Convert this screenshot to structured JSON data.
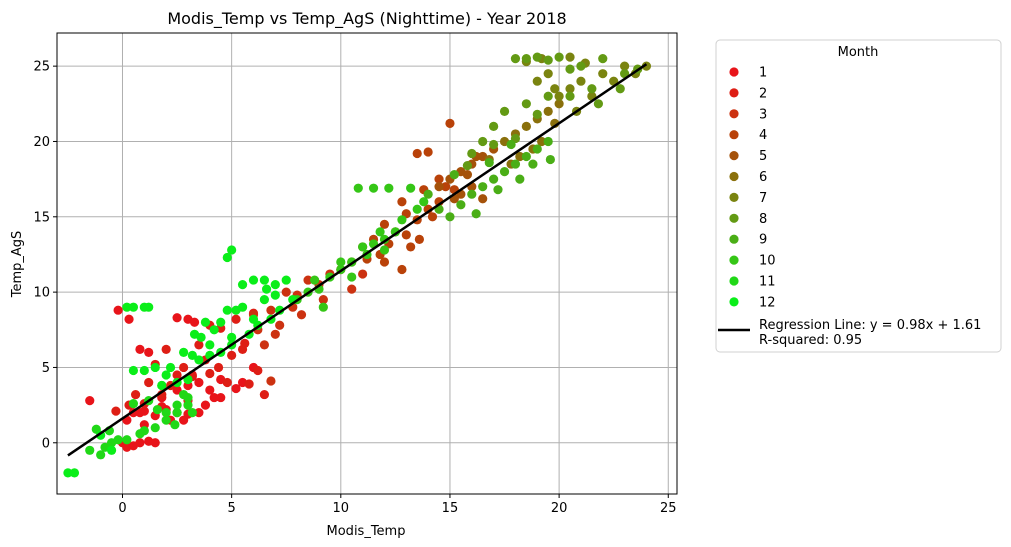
{
  "chart_data": {
    "type": "scatter",
    "title": "Modis_Temp vs Temp_AgS (Nighttime) - Year 2018",
    "xlabel": "Modis_Temp",
    "ylabel": "Temp_AgS",
    "xlim": [
      -3.0,
      25.4
    ],
    "ylim": [
      -3.4,
      27.2
    ],
    "xticks": [
      "0",
      "5",
      "10",
      "15",
      "20",
      "25"
    ],
    "yticks": [
      "0",
      "5",
      "10",
      "15",
      "20",
      "25"
    ],
    "grid": true,
    "legend": {
      "title": "Month",
      "placement": "outside-right",
      "regression_label": "Regression Line: y = 0.98x + 1.61",
      "r_squared_label": "R-squared: 0.95"
    },
    "regression": {
      "slope": 0.98,
      "intercept": 1.61,
      "x_range": [
        -2.5,
        24
      ],
      "color": "#000000"
    },
    "series": [
      {
        "name": "1",
        "color": "#e8141a",
        "points": [
          [
            -1.5,
            2.8
          ],
          [
            0.0,
            0.0
          ],
          [
            0.2,
            -0.3
          ],
          [
            0.5,
            -0.2
          ],
          [
            0.8,
            0.0
          ],
          [
            1.2,
            0.1
          ],
          [
            1.5,
            0.0
          ],
          [
            0.5,
            2.0
          ],
          [
            1.0,
            2.1
          ],
          [
            1.5,
            1.8
          ],
          [
            2.0,
            2.2
          ],
          [
            2.5,
            2.0
          ],
          [
            3.0,
            1.9
          ],
          [
            3.5,
            2.0
          ],
          [
            1.8,
            3.0
          ],
          [
            2.5,
            3.5
          ],
          [
            3.0,
            3.8
          ],
          [
            3.5,
            4.0
          ],
          [
            4.0,
            3.5
          ],
          [
            4.5,
            4.2
          ],
          [
            0.8,
            6.2
          ],
          [
            1.2,
            6.0
          ],
          [
            2.5,
            8.3
          ],
          [
            3.0,
            8.2
          ],
          [
            3.3,
            8.0
          ],
          [
            -0.2,
            8.8
          ],
          [
            0.3,
            8.2
          ],
          [
            4.5,
            3.0
          ],
          [
            5.2,
            3.6
          ],
          [
            6.0,
            5.0
          ],
          [
            2.2,
            1.5
          ],
          [
            1.0,
            1.2
          ],
          [
            3.8,
            2.5
          ],
          [
            0.2,
            1.5
          ],
          [
            4.2,
            3.0
          ],
          [
            2.8,
            1.5
          ],
          [
            1.8,
            2.4
          ],
          [
            0.8,
            2.0
          ],
          [
            3.2,
            4.5
          ],
          [
            5.5,
            4.0
          ]
        ]
      },
      {
        "name": "2",
        "color": "#de1e15",
        "points": [
          [
            -0.3,
            2.1
          ],
          [
            0.3,
            2.5
          ],
          [
            1.0,
            2.6
          ],
          [
            1.8,
            3.2
          ],
          [
            2.5,
            4.5
          ],
          [
            3.2,
            4.4
          ],
          [
            4.0,
            4.6
          ],
          [
            4.8,
            4.0
          ],
          [
            5.0,
            5.8
          ],
          [
            5.5,
            6.2
          ],
          [
            6.2,
            4.8
          ],
          [
            1.5,
            5.2
          ],
          [
            2.0,
            6.2
          ],
          [
            3.5,
            6.5
          ],
          [
            4.0,
            7.8
          ],
          [
            4.5,
            7.6
          ],
          [
            5.2,
            8.2
          ],
          [
            6.0,
            8.6
          ],
          [
            6.5,
            3.2
          ],
          [
            5.8,
            3.9
          ],
          [
            2.8,
            5.0
          ],
          [
            3.8,
            5.5
          ],
          [
            1.2,
            4.0
          ],
          [
            0.6,
            3.2
          ],
          [
            2.2,
            3.8
          ],
          [
            4.4,
            5.0
          ],
          [
            5.6,
            6.6
          ],
          [
            3.0,
            2.8
          ]
        ]
      },
      {
        "name": "3",
        "color": "#cc3211",
        "points": [
          [
            6.0,
            8.5
          ],
          [
            6.8,
            8.8
          ],
          [
            7.5,
            10.0
          ],
          [
            8.0,
            9.8
          ],
          [
            8.5,
            10.8
          ],
          [
            9.0,
            10.5
          ],
          [
            9.5,
            11.2
          ],
          [
            10.0,
            11.5
          ],
          [
            7.2,
            7.8
          ],
          [
            6.5,
            6.5
          ],
          [
            6.8,
            4.1
          ],
          [
            7.0,
            7.2
          ],
          [
            8.2,
            8.5
          ],
          [
            9.2,
            9.5
          ],
          [
            10.5,
            10.2
          ],
          [
            11.0,
            11.2
          ],
          [
            7.8,
            9.0
          ],
          [
            6.2,
            7.5
          ]
        ]
      },
      {
        "name": "4",
        "color": "#b94209",
        "points": [
          [
            10.5,
            12.0
          ],
          [
            11.0,
            13.0
          ],
          [
            11.5,
            13.5
          ],
          [
            12.0,
            14.5
          ],
          [
            12.5,
            14.0
          ],
          [
            13.0,
            13.8
          ],
          [
            13.5,
            14.8
          ],
          [
            14.0,
            15.5
          ],
          [
            14.5,
            16.0
          ],
          [
            13.5,
            19.2
          ],
          [
            14.0,
            19.3
          ],
          [
            14.5,
            17.5
          ],
          [
            15.0,
            21.2
          ],
          [
            13.8,
            16.8
          ],
          [
            12.8,
            11.5
          ],
          [
            13.2,
            13.0
          ],
          [
            12.2,
            13.2
          ],
          [
            11.8,
            12.5
          ],
          [
            14.2,
            15.0
          ],
          [
            15.2,
            16.8
          ],
          [
            12.8,
            16.0
          ],
          [
            13.0,
            15.2
          ],
          [
            12.0,
            12.0
          ],
          [
            14.8,
            17.0
          ],
          [
            11.2,
            12.2
          ],
          [
            13.6,
            13.5
          ]
        ]
      },
      {
        "name": "5",
        "color": "#a5520a",
        "points": [
          [
            14.5,
            17.0
          ],
          [
            15.0,
            17.5
          ],
          [
            15.5,
            18.0
          ],
          [
            16.0,
            18.5
          ],
          [
            16.5,
            19.0
          ],
          [
            17.0,
            19.5
          ],
          [
            15.5,
            16.5
          ],
          [
            16.0,
            17.0
          ],
          [
            15.2,
            16.2
          ],
          [
            15.8,
            17.8
          ],
          [
            16.5,
            16.2
          ],
          [
            16.2,
            19.0
          ]
        ]
      },
      {
        "name": "6",
        "color": "#8a700c",
        "points": [
          [
            17.5,
            20.0
          ],
          [
            18.0,
            20.5
          ],
          [
            18.5,
            21.0
          ],
          [
            19.0,
            21.5
          ],
          [
            19.5,
            22.0
          ],
          [
            20.0,
            22.5
          ],
          [
            18.2,
            19.0
          ],
          [
            17.8,
            18.5
          ],
          [
            19.2,
            20.0
          ],
          [
            19.8,
            21.2
          ],
          [
            16.8,
            18.8
          ],
          [
            18.8,
            19.5
          ]
        ]
      },
      {
        "name": "7",
        "color": "#7a8410",
        "points": [
          [
            19.0,
            24.0
          ],
          [
            19.5,
            24.5
          ],
          [
            20.0,
            23.0
          ],
          [
            20.5,
            23.5
          ],
          [
            21.0,
            24.0
          ],
          [
            21.5,
            23.0
          ],
          [
            22.0,
            24.5
          ],
          [
            22.5,
            24.0
          ],
          [
            23.0,
            25.0
          ],
          [
            23.5,
            24.5
          ],
          [
            24.0,
            25.0
          ],
          [
            18.5,
            25.3
          ],
          [
            19.2,
            25.5
          ],
          [
            20.5,
            25.6
          ],
          [
            21.2,
            25.2
          ],
          [
            20.8,
            22.0
          ],
          [
            19.8,
            23.5
          ]
        ]
      },
      {
        "name": "8",
        "color": "#639a14",
        "points": [
          [
            18.0,
            25.5
          ],
          [
            18.5,
            25.5
          ],
          [
            19.0,
            25.6
          ],
          [
            19.5,
            25.4
          ],
          [
            20.0,
            25.6
          ],
          [
            20.5,
            24.8
          ],
          [
            21.0,
            25.0
          ],
          [
            22.0,
            25.5
          ],
          [
            23.0,
            24.5
          ],
          [
            17.5,
            22.0
          ],
          [
            18.5,
            22.5
          ],
          [
            19.5,
            23.0
          ],
          [
            20.5,
            23.0
          ],
          [
            21.5,
            23.5
          ],
          [
            17.0,
            21.0
          ],
          [
            16.5,
            20.0
          ],
          [
            17.0,
            19.8
          ],
          [
            18.0,
            20.2
          ],
          [
            21.8,
            22.5
          ],
          [
            22.8,
            23.5
          ],
          [
            16.0,
            19.2
          ],
          [
            15.8,
            18.4
          ],
          [
            23.6,
            24.8
          ],
          [
            19.0,
            21.8
          ]
        ]
      },
      {
        "name": "9",
        "color": "#4aae16",
        "points": [
          [
            14.0,
            16.5
          ],
          [
            14.5,
            15.5
          ],
          [
            15.0,
            15.0
          ],
          [
            15.5,
            15.8
          ],
          [
            16.0,
            16.5
          ],
          [
            16.5,
            17.0
          ],
          [
            17.0,
            17.5
          ],
          [
            17.5,
            18.0
          ],
          [
            18.0,
            18.5
          ],
          [
            18.5,
            19.0
          ],
          [
            19.0,
            19.5
          ],
          [
            19.5,
            20.0
          ],
          [
            17.2,
            16.8
          ],
          [
            18.2,
            17.5
          ],
          [
            16.2,
            15.2
          ],
          [
            15.2,
            17.8
          ],
          [
            17.8,
            19.8
          ],
          [
            18.8,
            18.5
          ],
          [
            19.6,
            18.8
          ],
          [
            16.8,
            18.6
          ]
        ]
      },
      {
        "name": "10",
        "color": "#35c616",
        "points": [
          [
            8.0,
            9.5
          ],
          [
            8.5,
            10.0
          ],
          [
            9.0,
            10.2
          ],
          [
            9.5,
            11.0
          ],
          [
            10.0,
            11.5
          ],
          [
            10.5,
            12.0
          ],
          [
            11.0,
            13.0
          ],
          [
            11.5,
            13.2
          ],
          [
            12.0,
            13.5
          ],
          [
            12.5,
            14.0
          ],
          [
            10.8,
            16.9
          ],
          [
            11.5,
            16.9
          ],
          [
            12.2,
            16.9
          ],
          [
            13.2,
            16.9
          ],
          [
            10.0,
            12.0
          ],
          [
            11.2,
            12.5
          ],
          [
            12.8,
            14.8
          ],
          [
            13.5,
            15.5
          ],
          [
            9.2,
            9.0
          ],
          [
            10.5,
            11.0
          ],
          [
            12.0,
            12.8
          ],
          [
            8.8,
            10.8
          ],
          [
            13.8,
            16.0
          ],
          [
            11.8,
            14.0
          ]
        ]
      },
      {
        "name": "11",
        "color": "#20d817",
        "points": [
          [
            -1.5,
            -0.5
          ],
          [
            -1.0,
            -0.8
          ],
          [
            -0.8,
            -0.3
          ],
          [
            -0.5,
            0.0
          ],
          [
            -0.2,
            0.2
          ],
          [
            0.2,
            0.2
          ],
          [
            1.0,
            0.8
          ],
          [
            1.5,
            1.0
          ],
          [
            2.0,
            1.5
          ],
          [
            2.5,
            2.0
          ],
          [
            3.0,
            2.5
          ],
          [
            2.0,
            2.0
          ],
          [
            2.5,
            2.5
          ],
          [
            3.0,
            3.0
          ],
          [
            1.2,
            2.8
          ],
          [
            1.8,
            3.8
          ],
          [
            0.5,
            2.6
          ],
          [
            -1.2,
            0.9
          ],
          [
            -0.6,
            0.8
          ],
          [
            0.8,
            0.6
          ],
          [
            2.4,
            1.2
          ],
          [
            3.2,
            2.0
          ],
          [
            1.6,
            2.2
          ],
          [
            2.8,
            3.2
          ]
        ]
      },
      {
        "name": "12",
        "color": "#0aee19",
        "points": [
          [
            -2.5,
            -2.0
          ],
          [
            -2.2,
            -2.0
          ],
          [
            0.2,
            9.0
          ],
          [
            0.5,
            9.0
          ],
          [
            1.0,
            9.0
          ],
          [
            1.2,
            9.0
          ],
          [
            0.5,
            4.8
          ],
          [
            1.0,
            4.8
          ],
          [
            1.5,
            5.0
          ],
          [
            3.5,
            5.5
          ],
          [
            4.0,
            6.5
          ],
          [
            4.5,
            6.0
          ],
          [
            5.0,
            6.5
          ],
          [
            4.5,
            8.0
          ],
          [
            3.8,
            8.0
          ],
          [
            3.3,
            7.2
          ],
          [
            4.8,
            12.3
          ],
          [
            5.0,
            12.8
          ],
          [
            5.5,
            10.5
          ],
          [
            6.0,
            10.8
          ],
          [
            6.5,
            10.8
          ],
          [
            7.0,
            10.5
          ],
          [
            7.5,
            10.8
          ],
          [
            5.8,
            7.2
          ],
          [
            6.2,
            7.8
          ],
          [
            6.8,
            8.2
          ],
          [
            7.2,
            8.8
          ],
          [
            7.8,
            9.5
          ],
          [
            5.2,
            8.8
          ],
          [
            4.8,
            8.8
          ],
          [
            2.8,
            6.0
          ],
          [
            3.2,
            5.8
          ],
          [
            2.0,
            4.5
          ],
          [
            2.5,
            4.0
          ],
          [
            1.8,
            3.8
          ],
          [
            3.0,
            4.2
          ],
          [
            4.2,
            7.5
          ],
          [
            5.5,
            9.0
          ],
          [
            6.5,
            9.5
          ],
          [
            7.0,
            9.8
          ],
          [
            2.2,
            5.0
          ],
          [
            4.0,
            5.8
          ],
          [
            5.0,
            7.0
          ],
          [
            6.0,
            8.2
          ],
          [
            -1.0,
            0.5
          ],
          [
            -0.5,
            -0.5
          ],
          [
            3.6,
            7.0
          ],
          [
            6.6,
            10.2
          ]
        ]
      }
    ]
  }
}
